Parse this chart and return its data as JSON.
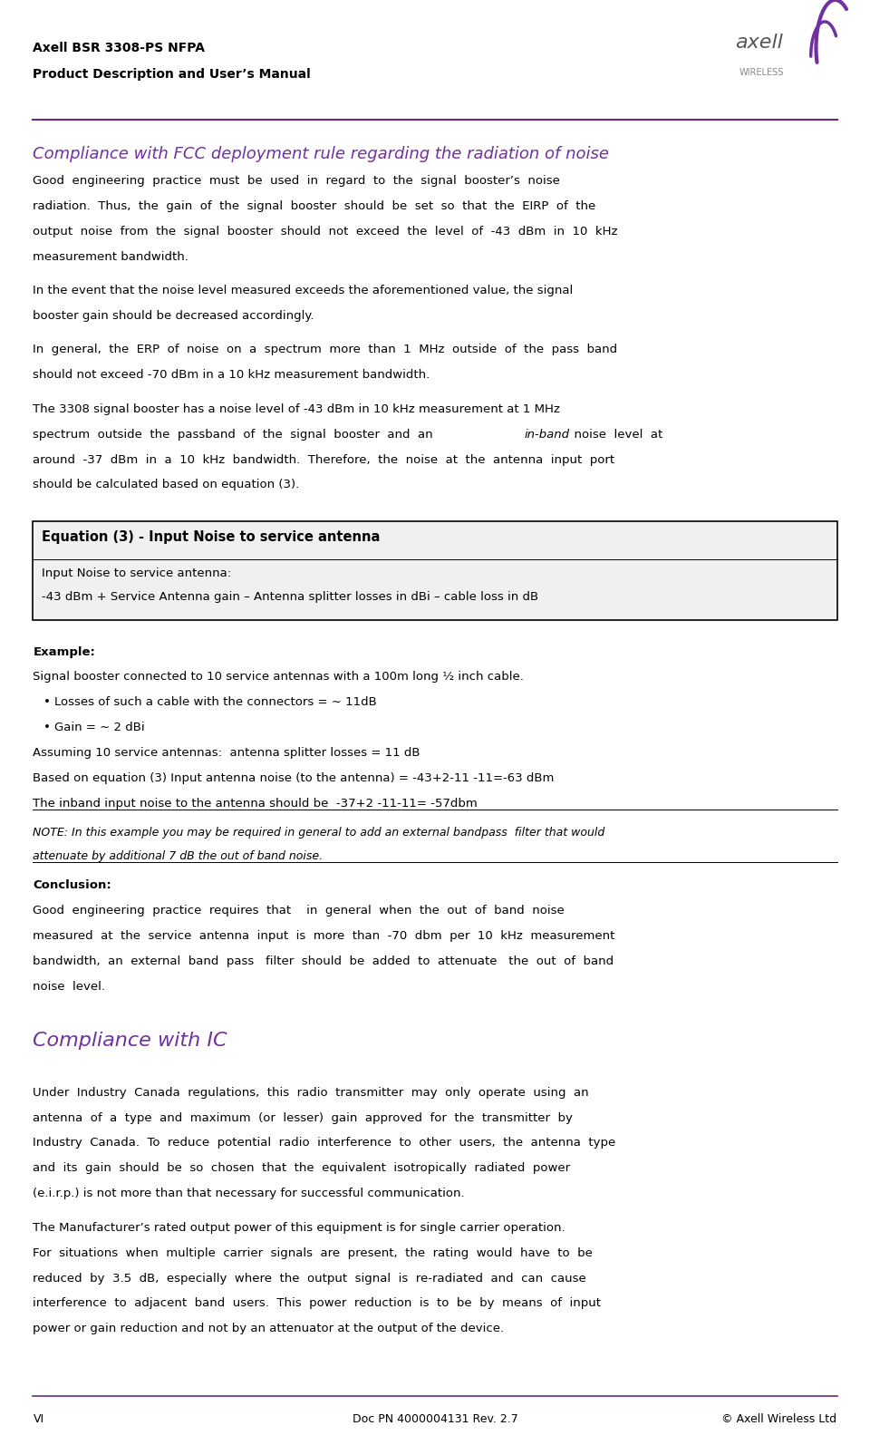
{
  "page_width": 9.6,
  "page_height": 15.94,
  "bg_color": "#ffffff",
  "header_line_color": "#6a2c7a",
  "header_title1": "Axell BSR 3308-PS NFPA",
  "header_title2": "Product Description and User’s Manual",
  "footer_left": "VI",
  "footer_center": "Doc PN 4000004131 Rev. 2.7",
  "footer_right": "© Axell Wireless Ltd",
  "section1_title": "Compliance with FCC deployment rule regarding the radiation of noise",
  "section1_color": "#7030a0",
  "eq_box_title": "Equation (3) - Input Noise to service antenna",
  "eq_line1": "Input Noise to service antenna:",
  "eq_line2": "-43 dBm + Service Antenna gain – Antenna splitter losses in dBi – cable loss in dB",
  "example_bold": "Example:",
  "example_line1": "Signal booster connected to 10 service antennas with a 100m long ½ inch cable.",
  "bullet1": "Losses of such a cable with the connectors = ∼ 11dB",
  "bullet2": "Gain = ∼ 2 dBi",
  "assuming_line": "Assuming 10 service antennas:  antenna splitter losses = 11 dB",
  "based_line": "Based on equation (3) Input antenna noise (to the antenna) = -43+2-11 -11=-63 dBm",
  "inband_line": "The inband input noise to the antenna should be  -37+2 -11-11= -57dbm",
  "note_line1": "NOTE: In this example you may be required in general to add an external bandpass  filter that would",
  "note_line2": "attenuate by additional 7 dB the out of band noise.",
  "conclusion_bold": "Conclusion:",
  "section2_title": "Compliance with IC",
  "section2_color": "#7030a0",
  "purple_color": "#7030a0",
  "text_color": "#000000",
  "logo_text_axell": "axell",
  "logo_text_wireless": "WIRELESS"
}
